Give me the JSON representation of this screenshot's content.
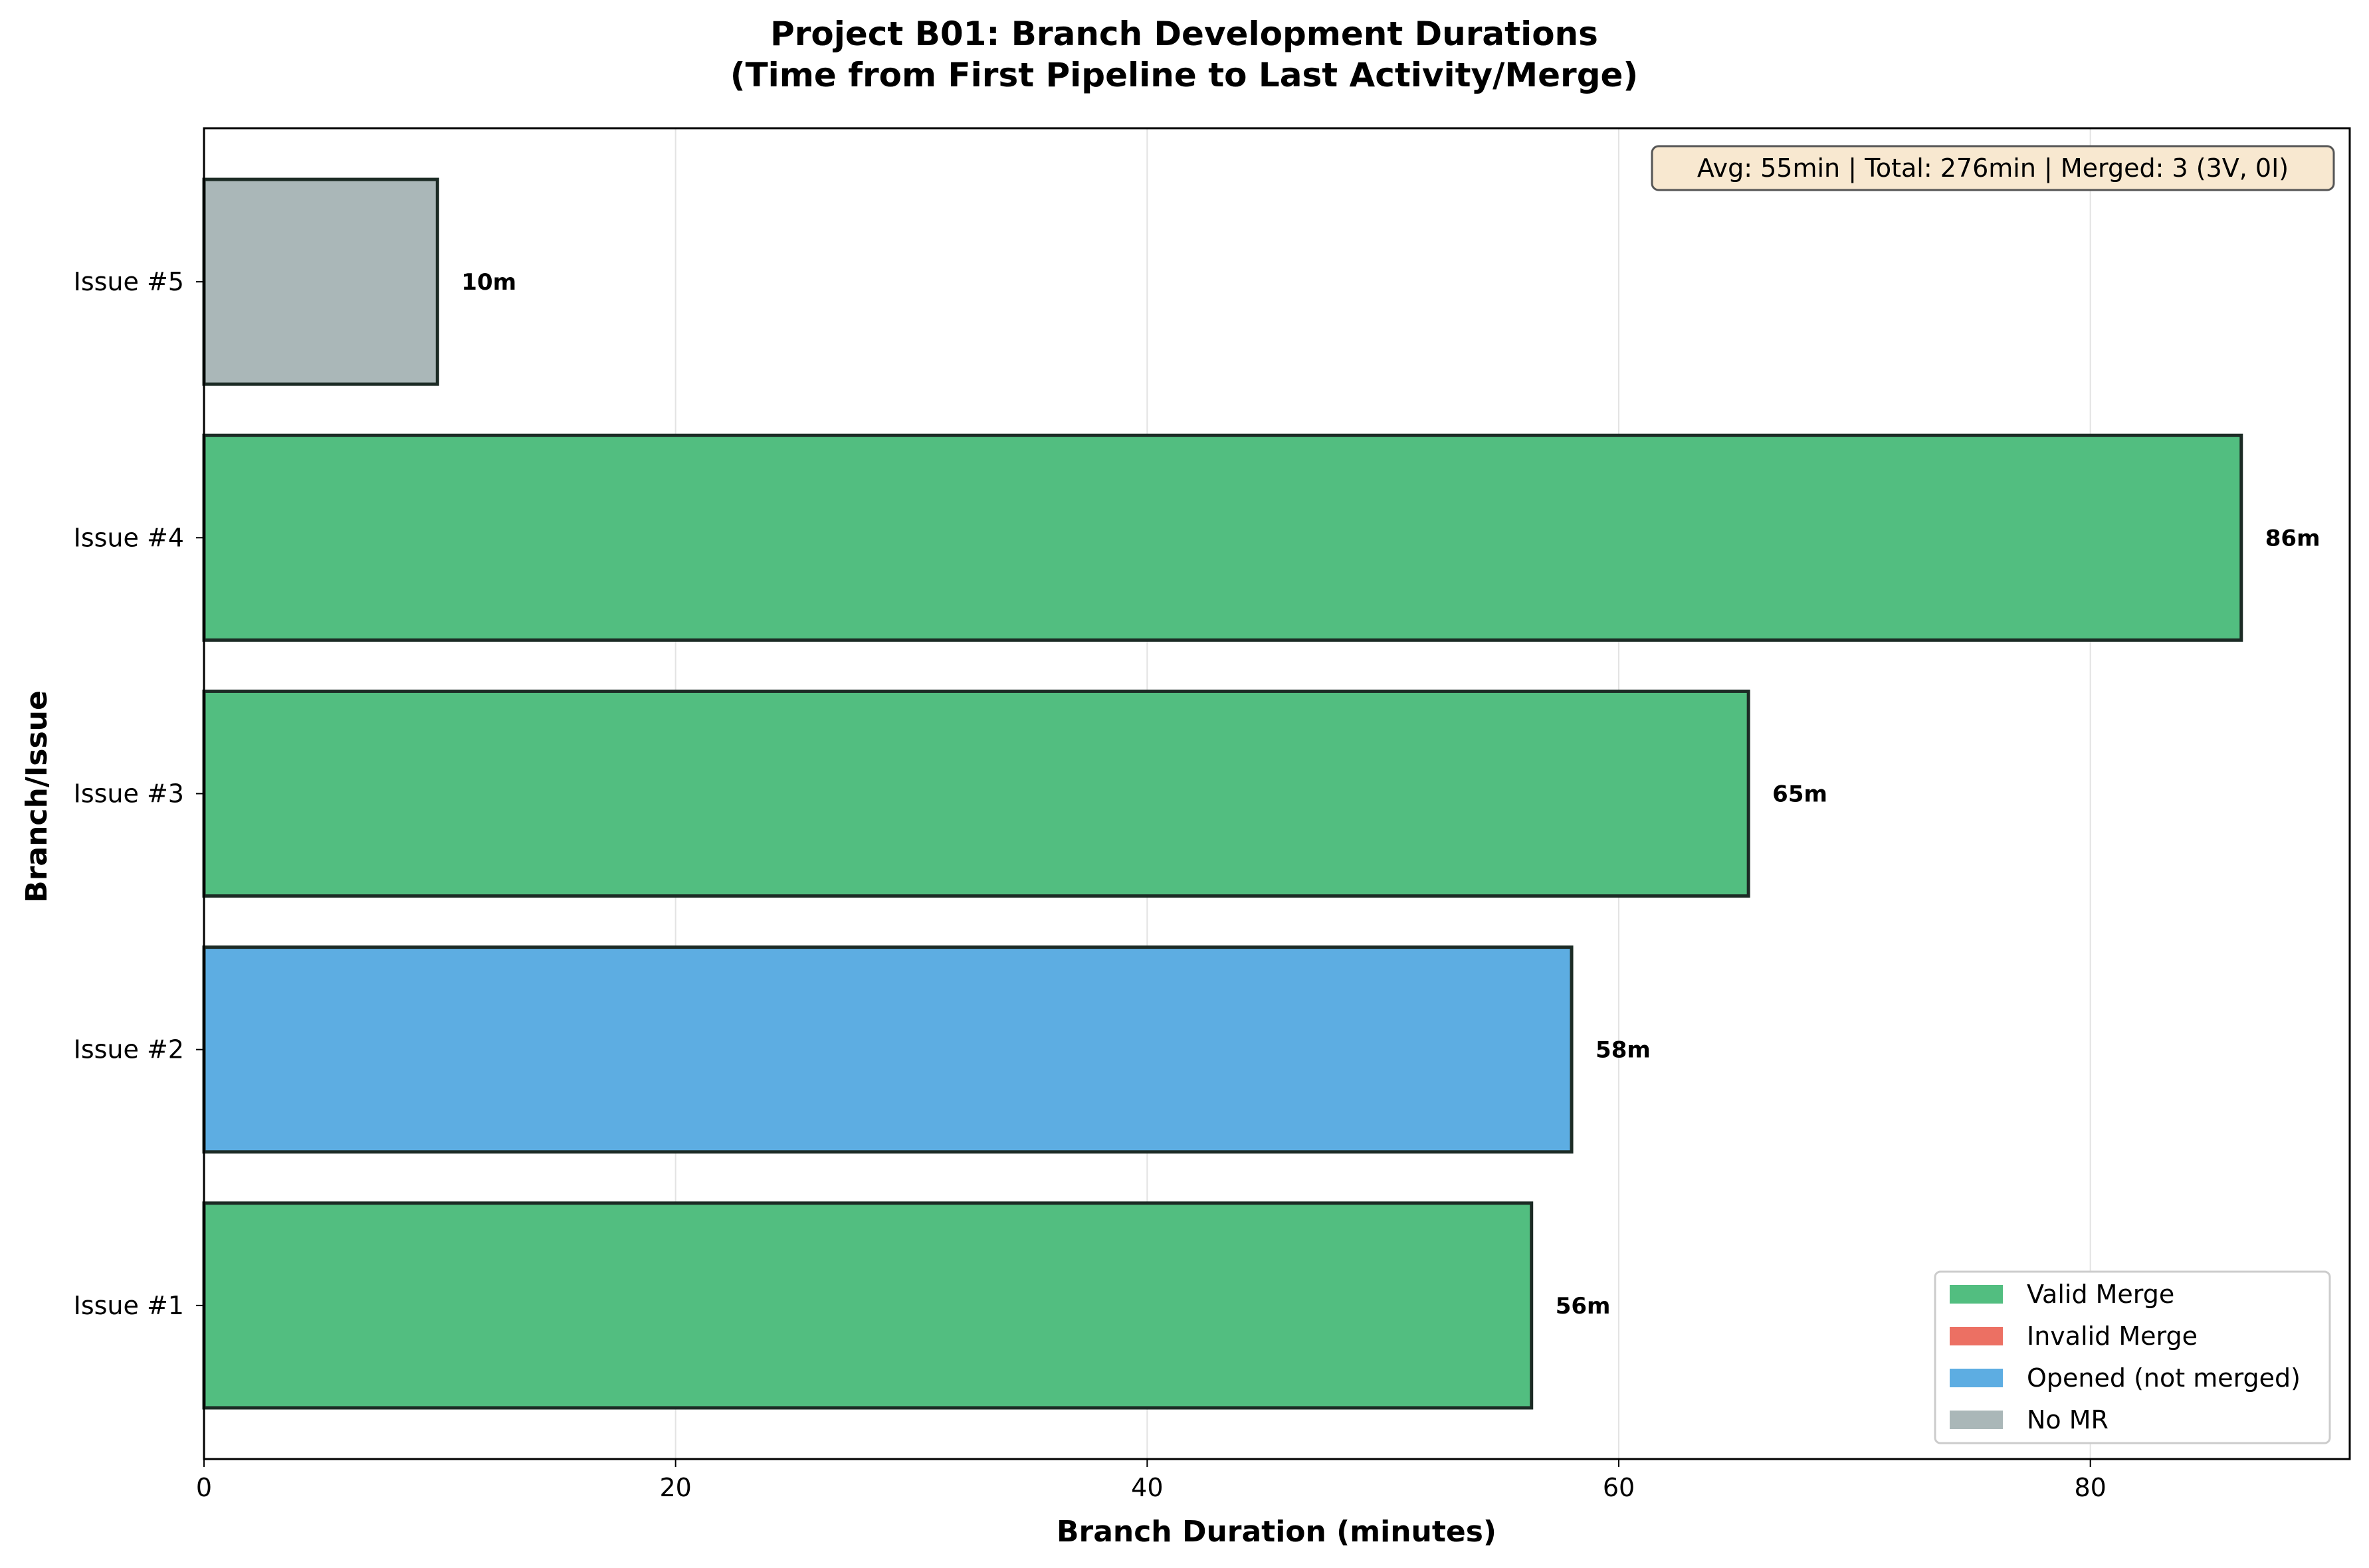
{
  "chart_data": {
    "type": "bar",
    "orientation": "horizontal",
    "title": "Project B01: Branch Development Durations",
    "subtitle": "(Time from First Pipeline to Last Activity/Merge)",
    "xlabel": "Branch Duration (minutes)",
    "ylabel": "Branch/Issue",
    "xlim": [
      0,
      91
    ],
    "xticks": [
      0,
      20,
      40,
      60,
      80
    ],
    "grid": true,
    "categories": [
      "Issue #1",
      "Issue #2",
      "Issue #3",
      "Issue #4",
      "Issue #5"
    ],
    "values": [
      56.3,
      58.0,
      65.5,
      86.4,
      9.9
    ],
    "value_labels": [
      "56m",
      "58m",
      "65m",
      "86m",
      "10m"
    ],
    "status": [
      "Valid Merge",
      "Opened (not merged)",
      "Valid Merge",
      "Valid Merge",
      "No MR"
    ],
    "legend": {
      "placement": "lower-right",
      "entries": [
        {
          "label": "Valid Merge",
          "color": "#52be80"
        },
        {
          "label": "Invalid Merge",
          "color": "#ec7063"
        },
        {
          "label": "Opened (not merged)",
          "color": "#5dade2"
        },
        {
          "label": "No MR",
          "color": "#aab7b8"
        }
      ]
    },
    "annotation": "Avg: 55min | Total: 276min | Merged: 3 (3V, 0I)",
    "colors": {
      "valid_merge": "#52be80",
      "invalid_merge": "#ec7063",
      "opened": "#5dade2",
      "no_mr": "#aab7b8",
      "bar_edge": "#1c2b25",
      "annotation_bg": "#f8e8d0"
    }
  }
}
